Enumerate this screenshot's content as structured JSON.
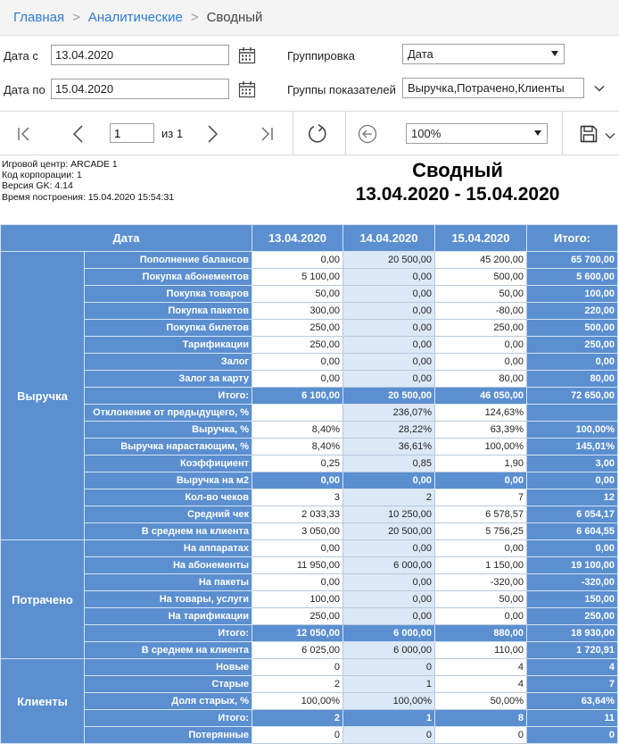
{
  "breadcrumb": {
    "items": [
      "Главная",
      "Аналитические"
    ],
    "separator": ">",
    "current": "Сводный"
  },
  "filters": {
    "date_from_label": "Дата с",
    "date_from_value": "13.04.2020",
    "date_to_label": "Дата по",
    "date_to_value": "15.04.2020",
    "grouping_label": "Группировка",
    "grouping_value": "Дата",
    "indicators_label": "Группы показателей",
    "indicators_value": "Выручка,Потрачено,Клиенты"
  },
  "toolbar": {
    "page_value": "1",
    "page_of": "из 1",
    "zoom_value": "100%"
  },
  "report": {
    "meta": [
      "Игровой центр: ARCADE 1",
      "Код корпорации: 1",
      "Версия GK: 4.14",
      "Время построения: 15.04.2020 15:54:31"
    ],
    "title": "Сводный",
    "period": "13.04.2020 - 15.04.2020"
  },
  "table": {
    "header": [
      "Дата",
      "13.04.2020",
      "14.04.2020",
      "15.04.2020",
      "Итого:"
    ],
    "groups": [
      {
        "name": "Выручка",
        "rows": [
          {
            "label": "Пополнение балансов",
            "values": [
              "0,00",
              "20 500,00",
              "45 200,00",
              "65 700,00"
            ]
          },
          {
            "label": "Покупка абонементов",
            "values": [
              "5 100,00",
              "0,00",
              "500,00",
              "5 600,00"
            ]
          },
          {
            "label": "Покупка товаров",
            "values": [
              "50,00",
              "0,00",
              "50,00",
              "100,00"
            ]
          },
          {
            "label": "Покупка пакетов",
            "values": [
              "300,00",
              "0,00",
              "-80,00",
              "220,00"
            ]
          },
          {
            "label": "Покупка билетов",
            "values": [
              "250,00",
              "0,00",
              "250,00",
              "500,00"
            ]
          },
          {
            "label": "Тарификации",
            "values": [
              "250,00",
              "0,00",
              "0,00",
              "250,00"
            ]
          },
          {
            "label": "Залог",
            "values": [
              "0,00",
              "0,00",
              "0,00",
              "0,00"
            ]
          },
          {
            "label": "Залог за карту",
            "values": [
              "0,00",
              "0,00",
              "80,00",
              "80,00"
            ]
          },
          {
            "label": "Итого:",
            "values": [
              "6 100,00",
              "20 500,00",
              "46 050,00",
              "72 650,00"
            ],
            "highlight": true
          },
          {
            "label": "Отклонение от предыдущего, %",
            "values": [
              "",
              "236,07%",
              "124,63%",
              ""
            ]
          },
          {
            "label": "Выручка, %",
            "values": [
              "8,40%",
              "28,22%",
              "63,39%",
              "100,00%"
            ]
          },
          {
            "label": "Выручка нарастающим, %",
            "values": [
              "8,40%",
              "36,61%",
              "100,00%",
              "145,01%"
            ]
          },
          {
            "label": "Коэффициент",
            "values": [
              "0,25",
              "0,85",
              "1,90",
              "3,00"
            ]
          },
          {
            "label": "Выручка на м2",
            "values": [
              "0,00",
              "0,00",
              "0,00",
              "0,00"
            ],
            "highlight": true
          },
          {
            "label": "Кол-во чеков",
            "values": [
              "3",
              "2",
              "7",
              "12"
            ]
          },
          {
            "label": "Средний чек",
            "values": [
              "2 033,33",
              "10 250,00",
              "6 578,57",
              "6 054,17"
            ]
          },
          {
            "label": "В среднем на клиента",
            "values": [
              "3 050,00",
              "20 500,00",
              "5 756,25",
              "6 604,55"
            ]
          }
        ]
      },
      {
        "name": "Потрачено",
        "rows": [
          {
            "label": "На аппаратах",
            "values": [
              "0,00",
              "0,00",
              "0,00",
              "0,00"
            ]
          },
          {
            "label": "На абонементы",
            "values": [
              "11 950,00",
              "6 000,00",
              "1 150,00",
              "19 100,00"
            ]
          },
          {
            "label": "На пакеты",
            "values": [
              "0,00",
              "0,00",
              "-320,00",
              "-320,00"
            ]
          },
          {
            "label": "На товары, услуги",
            "values": [
              "100,00",
              "0,00",
              "50,00",
              "150,00"
            ]
          },
          {
            "label": "На тарификации",
            "values": [
              "250,00",
              "0,00",
              "0,00",
              "250,00"
            ]
          },
          {
            "label": "Итого:",
            "values": [
              "12 050,00",
              "6 000,00",
              "880,00",
              "18 930,00"
            ],
            "highlight": true
          },
          {
            "label": "В среднем на клиента",
            "values": [
              "6 025,00",
              "6 000,00",
              "110,00",
              "1 720,91"
            ]
          }
        ]
      },
      {
        "name": "Клиенты",
        "rows": [
          {
            "label": "Новые",
            "values": [
              "0",
              "0",
              "4",
              "4"
            ]
          },
          {
            "label": "Старые",
            "values": [
              "2",
              "1",
              "4",
              "7"
            ]
          },
          {
            "label": "Доля старых, %",
            "values": [
              "100,00%",
              "100,00%",
              "50,00%",
              "63,64%"
            ]
          },
          {
            "label": "Итого:",
            "values": [
              "2",
              "1",
              "8",
              "11"
            ],
            "highlight": true
          },
          {
            "label": "Потерянные",
            "values": [
              "0",
              "0",
              "0",
              "0"
            ]
          }
        ]
      }
    ]
  }
}
